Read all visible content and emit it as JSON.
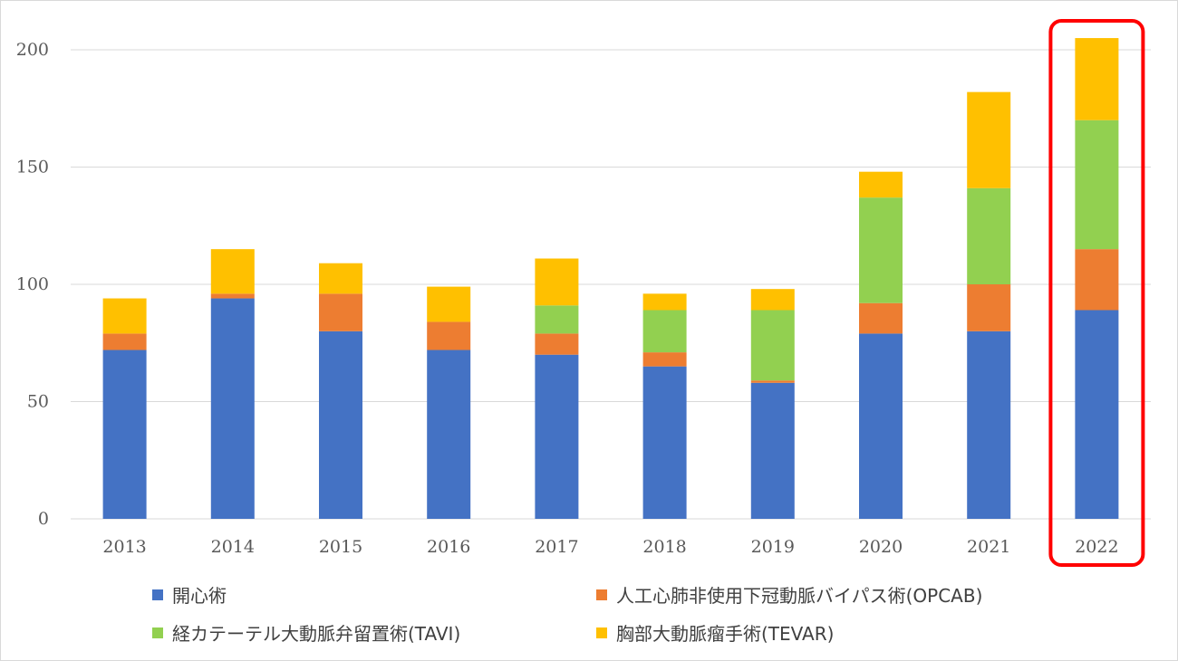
{
  "chart_data": {
    "type": "bar",
    "stacked": true,
    "categories": [
      "2013",
      "2014",
      "2015",
      "2016",
      "2017",
      "2018",
      "2019",
      "2020",
      "2021",
      "2022"
    ],
    "series": [
      {
        "name": "開心術",
        "color": "#4472c4",
        "values": [
          72,
          94,
          80,
          72,
          70,
          65,
          58,
          79,
          80,
          89
        ]
      },
      {
        "name": "人工心肺非使用下冠動脈バイパス術(OPCAB)",
        "color": "#ed7d31",
        "values": [
          7,
          2,
          16,
          12,
          9,
          6,
          1,
          13,
          20,
          26
        ]
      },
      {
        "name": "経カテーテル大動脈弁留置術(TAVI)",
        "color": "#92d050",
        "values": [
          0,
          0,
          0,
          0,
          12,
          18,
          30,
          45,
          41,
          55
        ]
      },
      {
        "name": "胸部大動脈瘤手術(TEVAR)",
        "color": "#ffc000",
        "values": [
          15,
          19,
          13,
          15,
          20,
          7,
          9,
          11,
          41,
          35
        ]
      }
    ],
    "ylim": [
      0,
      200
    ],
    "yticks": [
      "0",
      "50",
      "100",
      "150",
      "200"
    ],
    "grid": true,
    "legend_position": "bottom",
    "highlight": {
      "category": "2022",
      "color": "#ff0000"
    }
  }
}
